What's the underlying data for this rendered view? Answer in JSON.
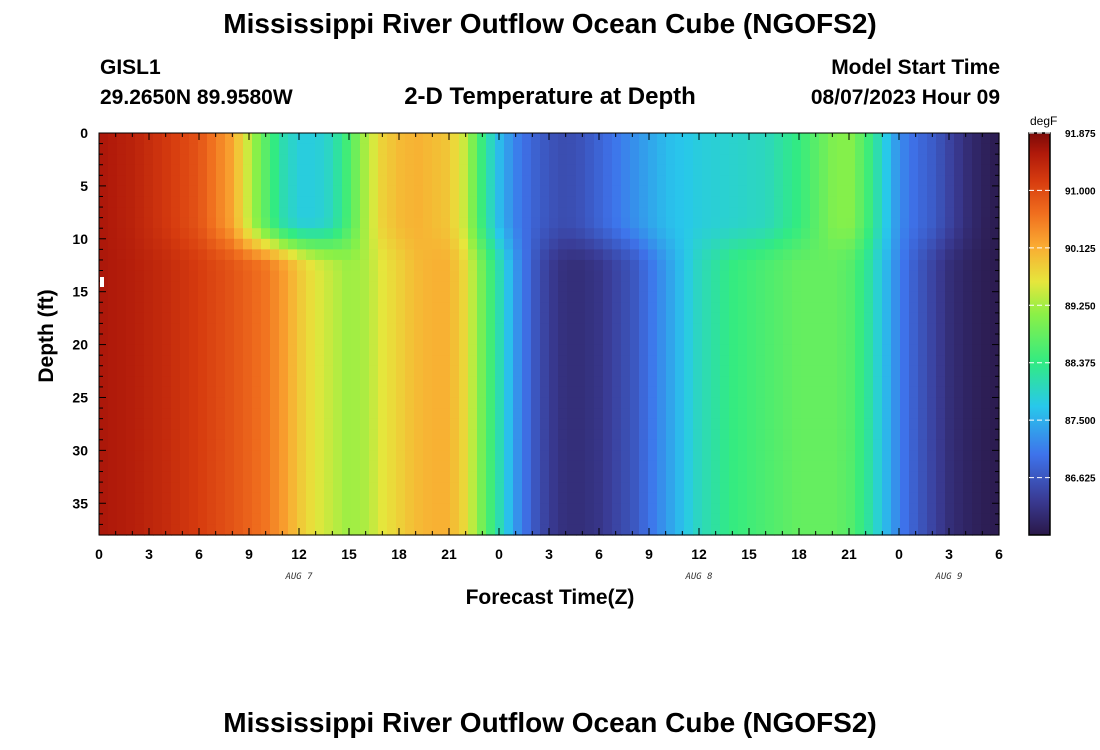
{
  "header": {
    "title": "Mississippi River Outflow Ocean Cube (NGOFS2)",
    "station": "GISL1",
    "coords": "29.2650N  89.9580W",
    "subtitle": "2-D Temperature at Depth",
    "model_start_label": "Model Start Time",
    "model_start_value": "08/07/2023 Hour 09"
  },
  "footer": {
    "title": "Mississippi River Outflow Ocean Cube (NGOFS2)"
  },
  "chart_data": {
    "type": "heatmap",
    "title": "2-D Temperature at Depth",
    "xlabel": "Forecast Time(Z)",
    "ylabel": "Depth (ft)",
    "x_tick_labels": [
      "0",
      "3",
      "6",
      "9",
      "12",
      "15",
      "18",
      "21",
      "0",
      "3",
      "6",
      "9",
      "12",
      "15",
      "18",
      "21",
      "0",
      "3",
      "6"
    ],
    "x_date_labels": [
      {
        "label": "AUG 7",
        "hour": 12
      },
      {
        "label": "AUG 8",
        "hour": 36
      },
      {
        "label": "AUG 9",
        "hour": 51
      }
    ],
    "xlim_hours": [
      0,
      54
    ],
    "y_tick_labels": [
      "0",
      "5",
      "10",
      "15",
      "20",
      "25",
      "30",
      "35"
    ],
    "ylim": [
      0,
      38
    ],
    "y_reversed": true,
    "colorbar": {
      "unit": "degF",
      "min": 85.75,
      "max": 91.875,
      "tick_labels": [
        "91.875",
        "91.000",
        "90.125",
        "89.250",
        "88.375",
        "87.500",
        "86.625"
      ],
      "tick_values": [
        91.875,
        91.0,
        90.125,
        89.25,
        88.375,
        87.5,
        86.625
      ]
    },
    "times_hours": [
      0,
      2,
      4,
      6,
      8,
      9,
      10,
      11,
      12,
      13,
      14,
      15,
      16,
      17,
      18,
      19,
      20,
      21,
      22,
      23,
      24,
      25,
      26,
      27,
      28,
      29,
      30,
      32,
      34,
      36,
      38,
      40,
      42,
      44,
      45,
      46,
      47,
      48,
      49,
      50,
      51,
      52,
      53,
      54
    ],
    "upper_layer_degF": [
      91.6,
      91.45,
      91.2,
      90.9,
      90.2,
      89.4,
      88.7,
      88.1,
      87.8,
      87.8,
      88.0,
      88.6,
      89.3,
      89.8,
      90.0,
      90.1,
      90.0,
      89.9,
      89.4,
      88.4,
      87.6,
      87.1,
      86.8,
      86.6,
      86.5,
      86.6,
      86.8,
      87.2,
      87.6,
      87.8,
      87.9,
      88.0,
      88.4,
      89.0,
      89.1,
      88.6,
      87.9,
      87.2,
      86.9,
      86.7,
      86.4,
      86.1,
      85.9,
      85.8
    ],
    "lower_layer_degF": [
      91.6,
      91.5,
      91.35,
      91.15,
      90.9,
      90.75,
      90.6,
      90.3,
      89.9,
      89.6,
      89.4,
      89.2,
      89.3,
      89.6,
      89.8,
      90.0,
      90.1,
      90.1,
      89.7,
      88.9,
      88.1,
      87.3,
      86.7,
      86.3,
      86.1,
      86.1,
      86.2,
      86.6,
      87.3,
      88.0,
      88.4,
      88.6,
      88.8,
      88.8,
      88.7,
      88.3,
      87.7,
      87.1,
      86.7,
      86.4,
      86.1,
      85.95,
      85.85,
      85.8
    ]
  }
}
